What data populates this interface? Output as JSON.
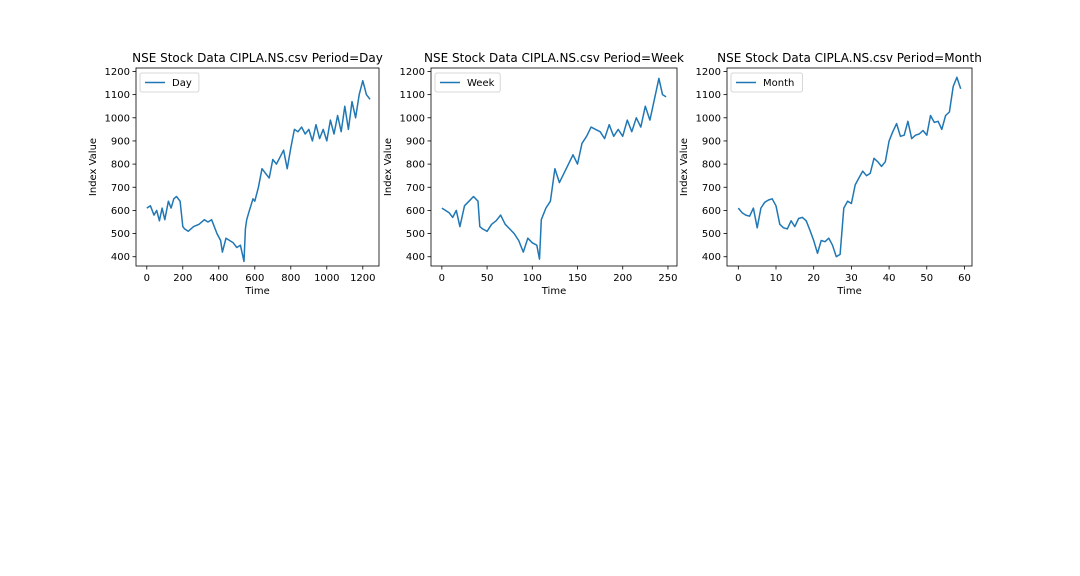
{
  "figure": {
    "background": "#ffffff",
    "line_color": "#1f77b4"
  },
  "chart_data": [
    {
      "type": "line",
      "title": "NSE Stock Data CIPLA.NS.csv Period=Day",
      "xlabel": "Time",
      "ylabel": "Index Value",
      "xlim": [
        -60,
        1290
      ],
      "ylim": [
        360,
        1215
      ],
      "xticks": [
        0,
        200,
        400,
        600,
        800,
        1000,
        1200
      ],
      "yticks": [
        400,
        500,
        600,
        700,
        800,
        900,
        1000,
        1100,
        1200
      ],
      "legend": "upper left",
      "grid": false,
      "series": [
        {
          "name": "Day",
          "x": [
            0,
            20,
            40,
            55,
            70,
            85,
            100,
            120,
            135,
            150,
            165,
            185,
            200,
            210,
            230,
            260,
            290,
            320,
            340,
            360,
            390,
            410,
            420,
            440,
            460,
            480,
            500,
            520,
            540,
            548,
            555,
            570,
            590,
            600,
            620,
            640,
            660,
            680,
            700,
            720,
            740,
            760,
            780,
            800,
            820,
            840,
            860,
            880,
            900,
            920,
            940,
            960,
            980,
            1000,
            1020,
            1040,
            1060,
            1080,
            1100,
            1120,
            1140,
            1160,
            1180,
            1200,
            1220,
            1240
          ],
          "values": [
            610,
            620,
            580,
            600,
            555,
            610,
            560,
            640,
            610,
            650,
            660,
            640,
            530,
            520,
            510,
            530,
            540,
            560,
            550,
            560,
            500,
            470,
            420,
            480,
            470,
            460,
            440,
            450,
            380,
            520,
            560,
            600,
            650,
            640,
            700,
            780,
            760,
            740,
            820,
            800,
            830,
            860,
            780,
            870,
            950,
            940,
            960,
            930,
            950,
            900,
            970,
            910,
            950,
            900,
            990,
            930,
            1010,
            940,
            1050,
            950,
            1070,
            1000,
            1100,
            1160,
            1100,
            1080
          ]
        }
      ]
    },
    {
      "type": "line",
      "title": "NSE Stock Data CIPLA.NS.csv Period=Week",
      "xlabel": "Time",
      "ylabel": "Index Value",
      "xlim": [
        -12,
        260
      ],
      "ylim": [
        360,
        1215
      ],
      "xticks": [
        0,
        50,
        100,
        150,
        200,
        250
      ],
      "yticks": [
        400,
        500,
        600,
        700,
        800,
        900,
        1000,
        1100,
        1200
      ],
      "legend": "upper left",
      "grid": false,
      "series": [
        {
          "name": "Week",
          "x": [
            0,
            4,
            8,
            12,
            16,
            20,
            25,
            30,
            35,
            40,
            42,
            45,
            50,
            55,
            60,
            65,
            70,
            75,
            80,
            85,
            90,
            95,
            100,
            105,
            108,
            110,
            115,
            120,
            125,
            130,
            135,
            140,
            145,
            150,
            155,
            160,
            165,
            170,
            175,
            180,
            185,
            190,
            195,
            200,
            205,
            210,
            215,
            220,
            225,
            230,
            235,
            240,
            244,
            248
          ],
          "values": [
            610,
            600,
            590,
            570,
            600,
            530,
            620,
            640,
            660,
            640,
            530,
            520,
            510,
            540,
            555,
            580,
            540,
            520,
            500,
            470,
            420,
            480,
            460,
            450,
            390,
            560,
            610,
            640,
            780,
            720,
            760,
            800,
            840,
            800,
            890,
            920,
            960,
            950,
            940,
            910,
            970,
            920,
            950,
            920,
            990,
            940,
            1000,
            960,
            1050,
            990,
            1080,
            1170,
            1100,
            1090
          ]
        }
      ]
    },
    {
      "type": "line",
      "title": "NSE Stock Data CIPLA.NS.csv Period=Month",
      "xlabel": "Time",
      "ylabel": "Index Value",
      "xlim": [
        -3,
        62
      ],
      "ylim": [
        360,
        1215
      ],
      "xticks": [
        0,
        10,
        20,
        30,
        40,
        50,
        60
      ],
      "yticks": [
        400,
        500,
        600,
        700,
        800,
        900,
        1000,
        1100,
        1200
      ],
      "legend": "upper left",
      "grid": false,
      "series": [
        {
          "name": "Month",
          "x": [
            0,
            1,
            2,
            3,
            4,
            5,
            6,
            7,
            8,
            9,
            10,
            11,
            12,
            13,
            14,
            15,
            16,
            17,
            18,
            19,
            20,
            21,
            22,
            23,
            24,
            25,
            26,
            27,
            28,
            29,
            30,
            31,
            32,
            33,
            34,
            35,
            36,
            37,
            38,
            39,
            40,
            41,
            42,
            43,
            44,
            45,
            46,
            47,
            48,
            49,
            50,
            51,
            52,
            53,
            54,
            55,
            56,
            57,
            58,
            59
          ],
          "values": [
            610,
            590,
            580,
            575,
            610,
            525,
            610,
            635,
            645,
            650,
            620,
            540,
            525,
            520,
            555,
            530,
            565,
            570,
            555,
            515,
            470,
            415,
            470,
            465,
            480,
            450,
            400,
            410,
            610,
            640,
            630,
            710,
            740,
            770,
            750,
            760,
            825,
            810,
            790,
            810,
            900,
            940,
            975,
            920,
            925,
            985,
            910,
            925,
            930,
            945,
            925,
            1010,
            980,
            985,
            950,
            1010,
            1025,
            1135,
            1175,
            1125
          ]
        }
      ]
    }
  ]
}
